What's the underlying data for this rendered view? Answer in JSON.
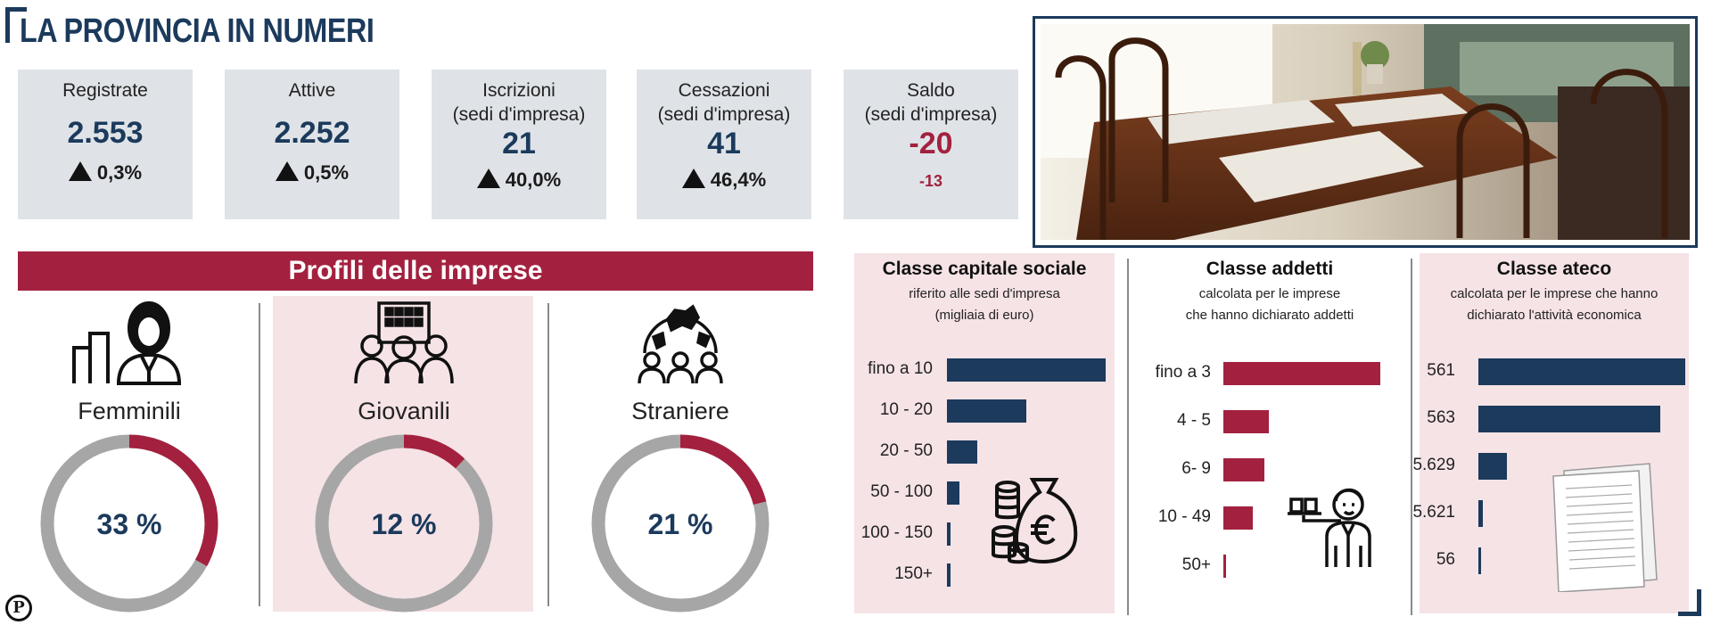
{
  "header": {
    "title": "LA PROVINCIA IN NUMERI"
  },
  "stats": [
    {
      "label": "Registrate",
      "value": "2.553",
      "delta": "0,3%",
      "trend": "up"
    },
    {
      "label": "Attive",
      "value": "2.252",
      "delta": "0,5%",
      "trend": "up"
    },
    {
      "label": "Iscrizioni\n(sedi d'impresa)",
      "value": "21",
      "delta": "40,0%",
      "trend": "up"
    },
    {
      "label": "Cessazioni\n(sedi d'impresa)",
      "value": "41",
      "delta": "46,4%",
      "trend": "up"
    },
    {
      "label": "Saldo\n(sedi d'impresa)",
      "value": "-20",
      "delta": "-13",
      "trend": "none"
    }
  ],
  "profiles": {
    "title": "Profili delle imprese",
    "items": [
      {
        "label": "Femminili",
        "percent": 33,
        "display": "33 %",
        "icon": "businesswoman-icon"
      },
      {
        "label": "Giovanili",
        "percent": 12,
        "display": "12 %",
        "icon": "young-people-icon"
      },
      {
        "label": "Straniere",
        "percent": 21,
        "display": "21 %",
        "icon": "foreigners-globe-icon"
      }
    ]
  },
  "colors": {
    "navy": "#1b3a5c",
    "crimson": "#a3213f",
    "grey_ring": "#a6a6a6",
    "stat_bg": "#dfe3e7",
    "panel_pink": "#f6e3e6"
  },
  "chart_data": [
    {
      "type": "bar",
      "orientation": "horizontal",
      "title": "Classe capitale sociale",
      "subtitle": "riferito alle sedi d'impresa\n(migliaia di euro)",
      "categories": [
        "fino a 10",
        "10 - 20",
        "20 - 50",
        "50 - 100",
        "100 - 150",
        "150+"
      ],
      "values": [
        100,
        50,
        19,
        8,
        2,
        2
      ],
      "value_scale": "relative bar length (0-100), no values printed",
      "color": "#1b3a5c",
      "icon": "money-bag-coins-icon"
    },
    {
      "type": "bar",
      "orientation": "horizontal",
      "title": "Classe addetti",
      "subtitle": "calcolata per le imprese\nche hanno dichiarato addetti",
      "categories": [
        "fino a 3",
        "4 - 5",
        "6- 9",
        "10 - 49",
        "50+"
      ],
      "values": [
        100,
        29,
        26,
        19,
        1
      ],
      "value_scale": "relative bar length (0-100), no values printed",
      "color": "#a3213f",
      "icon": "waiter-icon"
    },
    {
      "type": "bar",
      "orientation": "horizontal",
      "title": "Classe ateco",
      "subtitle": "calcolata per le imprese che hanno\ndichiarato l'attività economica",
      "categories": [
        "561",
        "563",
        "5.629",
        "5.621",
        "56"
      ],
      "values": [
        100,
        88,
        14,
        2,
        1
      ],
      "value_scale": "relative bar length (0-100), no values printed",
      "color": "#1b3a5c",
      "icon": "document-pages-icon"
    }
  ],
  "footer": {
    "logo": "P"
  }
}
